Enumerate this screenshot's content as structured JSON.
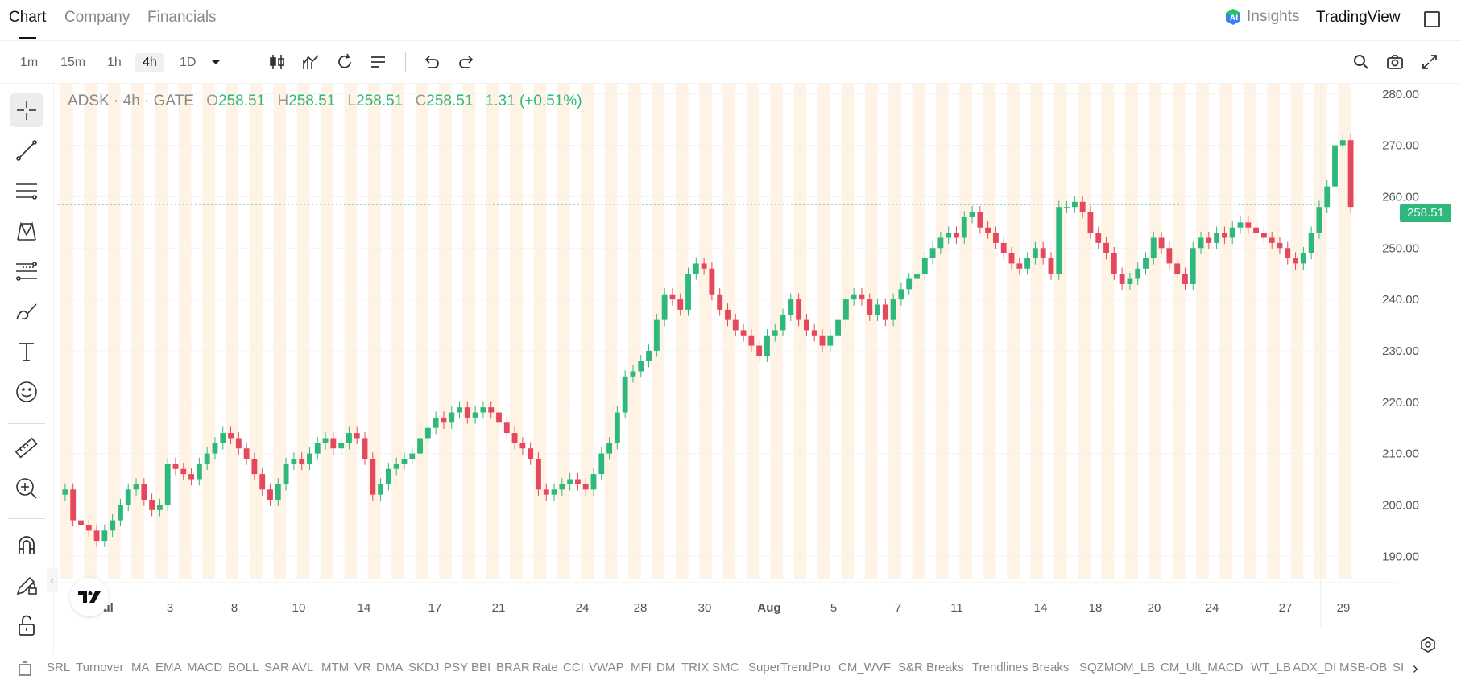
{
  "tabs": [
    {
      "label": "Chart"
    },
    {
      "label": "Company"
    },
    {
      "label": "Financials"
    }
  ],
  "header": {
    "insights": "Insights",
    "tradingview": "TradingView"
  },
  "timeframes": [
    {
      "label": "1m"
    },
    {
      "label": "15m"
    },
    {
      "label": "1h"
    },
    {
      "label": "4h",
      "active": true
    },
    {
      "label": "1D"
    }
  ],
  "legend": {
    "symbol": "ADSK · 4h · GATE",
    "o_label": "O",
    "o": "258.51",
    "h_label": "H",
    "h": "258.51",
    "l_label": "L",
    "l": "258.51",
    "c_label": "C",
    "c": "258.51",
    "change": "1.31 (+0.51%)"
  },
  "last_price": "258.51",
  "colors": {
    "up": "#2fb87c",
    "down": "#e5485c",
    "session_band": "#fff3e6",
    "grid": "#f3f3f3"
  },
  "chart_data": {
    "type": "candlestick",
    "symbol": "ADSK",
    "interval": "4h",
    "y_ticks": [
      "280.00",
      "270.00",
      "260.00",
      "250.00",
      "240.00",
      "230.00",
      "220.00",
      "210.00",
      "200.00",
      "190.00"
    ],
    "ylim": [
      185.5,
      282
    ],
    "x_ticks": [
      "Jul",
      "3",
      "8",
      "10",
      "14",
      "17",
      "21",
      "24",
      "28",
      "30",
      "Aug",
      "5",
      "7",
      "11",
      "14",
      "18",
      "20",
      "24",
      "27",
      "29"
    ],
    "closes": [
      203,
      197,
      196,
      195,
      193,
      195,
      197,
      200,
      203,
      204,
      201,
      199,
      200,
      208,
      207,
      206,
      205,
      208,
      210,
      212,
      214,
      213,
      211,
      209,
      206,
      203,
      201,
      204,
      208,
      209,
      208,
      210,
      212,
      213,
      211,
      212,
      214,
      213,
      209,
      202,
      204,
      207,
      208,
      209,
      210,
      213,
      215,
      217,
      216,
      218,
      219,
      217,
      218,
      219,
      218,
      216,
      214,
      212,
      211,
      209,
      203,
      202,
      203,
      204,
      205,
      204,
      203,
      206,
      210,
      212,
      218,
      225,
      226,
      228,
      230,
      236,
      241,
      240,
      238,
      245,
      247,
      246,
      241,
      238,
      236,
      234,
      233,
      231,
      229,
      233,
      234,
      237,
      240,
      236,
      234,
      233,
      231,
      233,
      236,
      240,
      241,
      240,
      237,
      239,
      236,
      240,
      242,
      244,
      245,
      248,
      250,
      252,
      253,
      252,
      256,
      257,
      254,
      253,
      251,
      249,
      247,
      246,
      248,
      250,
      248,
      245,
      258,
      258,
      259,
      257,
      253,
      251,
      249,
      245,
      243,
      244,
      246,
      248,
      252,
      250,
      247,
      245,
      243,
      250,
      252,
      251,
      253,
      252,
      254,
      255,
      254,
      253,
      252,
      251,
      250,
      248,
      247,
      249,
      253,
      258,
      262,
      270,
      271,
      258
    ]
  },
  "indicators": [
    "SRL",
    "Turnover",
    "MA",
    "EMA",
    "MACD",
    "BOLL",
    "SAR",
    "AVL",
    "MTM",
    "VR",
    "DMA",
    "SKDJ",
    "PSY",
    "BBI",
    "BRAR",
    "Rate",
    "CCI",
    "VWAP",
    "MFI",
    "DM",
    "TRIX",
    "SMC",
    "SuperTrendPro",
    "CM_WVF",
    "S&R Breaks",
    "Trendlines Breaks",
    "SQZMOM_LB",
    "CM_Ult_MACD",
    "WT_LB",
    "ADX_DI",
    "MSB-OB",
    "SI"
  ]
}
